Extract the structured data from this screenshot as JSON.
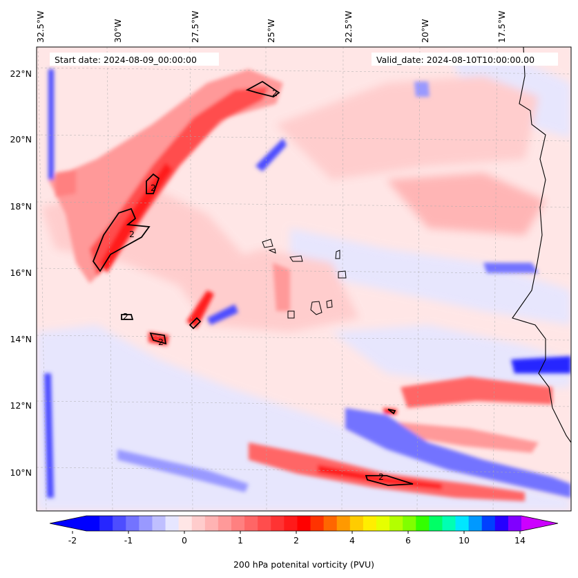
{
  "header": {
    "start_date": "Start date: 2024-08-09_00:00:00",
    "valid_date": "Valid_date: 2024-08-10T10:00:00.00"
  },
  "map": {
    "lon_range": [
      -33.0,
      -15.0
    ],
    "lat_range": [
      9.0,
      22.7
    ],
    "lon_ticks": [
      {
        "value": -32.5,
        "label": "32.5°W"
      },
      {
        "value": -30.0,
        "label": "30°W"
      },
      {
        "value": -27.5,
        "label": "27.5°W"
      },
      {
        "value": -25.0,
        "label": "25°W"
      },
      {
        "value": -22.5,
        "label": "22.5°W"
      },
      {
        "value": -20.0,
        "label": "20°W"
      },
      {
        "value": -17.5,
        "label": "17.5°W"
      }
    ],
    "lat_ticks": [
      {
        "value": 22,
        "label": "22°N"
      },
      {
        "value": 20,
        "label": "20°N"
      },
      {
        "value": 18,
        "label": "18°N"
      },
      {
        "value": 16,
        "label": "16°N"
      },
      {
        "value": 14,
        "label": "14°N"
      },
      {
        "value": 12,
        "label": "12°N"
      },
      {
        "value": 10,
        "label": "10°N"
      }
    ],
    "contour_label": "2",
    "grid": true
  },
  "colorbar": {
    "label": "200 hPa potenital vorticity (PVU)",
    "ticks": [
      "-2",
      "-1",
      "0",
      "1",
      "2",
      "4",
      "6",
      "10",
      "14"
    ],
    "colors": [
      "#0000ff",
      "#2626ff",
      "#4d4dff",
      "#7373ff",
      "#9999ff",
      "#bfbfff",
      "#e6e6ff",
      "#ffe6e6",
      "#ffcccc",
      "#ffb3b3",
      "#ff9999",
      "#ff8080",
      "#ff6666",
      "#ff4d4d",
      "#ff3333",
      "#ff1a1a",
      "#ff0000",
      "#ff3300",
      "#ff6600",
      "#ff9900",
      "#ffcc00",
      "#ffee00",
      "#e6ff00",
      "#b3ff00",
      "#80ff00",
      "#33ff00",
      "#00ff66",
      "#00ffb3",
      "#00e6ff",
      "#0099ff",
      "#0040ff",
      "#2600ff",
      "#8000ff"
    ],
    "min_color": "#0000ff",
    "max_color": "#cc00ff"
  }
}
